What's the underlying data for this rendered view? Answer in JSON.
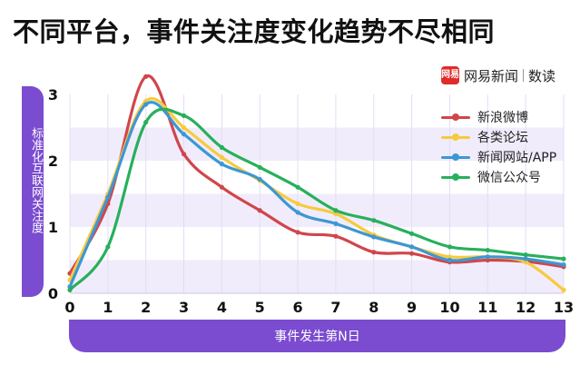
{
  "title": "不同平台，事件关注度变化趋势不尽相同",
  "brand": {
    "logo_text": "网易",
    "name": "网易新闻",
    "sub": "数读"
  },
  "chart_data": {
    "type": "line",
    "xlabel": "事件发生第N日",
    "ylabel": "标准化互联网关注度",
    "x": [
      0,
      1,
      2,
      3,
      4,
      5,
      6,
      7,
      8,
      9,
      10,
      11,
      12,
      13
    ],
    "xlim": [
      0,
      13
    ],
    "ylim": [
      0,
      3
    ],
    "y_ticks": [
      0,
      1,
      2,
      3
    ],
    "grid": "horizontal bands",
    "legend_position": "right",
    "series": [
      {
        "name": "新浪微博",
        "color": "#d0464b",
        "values": [
          0.3,
          1.35,
          3.27,
          2.1,
          1.6,
          1.25,
          0.92,
          0.86,
          0.62,
          0.6,
          0.47,
          0.5,
          0.48,
          0.4
        ]
      },
      {
        "name": "各类论坛",
        "color": "#f6cb3c",
        "values": [
          0.2,
          1.5,
          2.9,
          2.5,
          2.05,
          1.7,
          1.35,
          1.2,
          0.88,
          0.7,
          0.55,
          0.55,
          0.47,
          0.05
        ]
      },
      {
        "name": "新闻网站/APP",
        "color": "#3d97d4",
        "values": [
          0.1,
          1.45,
          2.85,
          2.4,
          1.95,
          1.72,
          1.22,
          1.05,
          0.85,
          0.7,
          0.5,
          0.55,
          0.52,
          0.43
        ]
      },
      {
        "name": "微信公众号",
        "color": "#27b05b",
        "values": [
          0.05,
          0.7,
          2.58,
          2.68,
          2.2,
          1.9,
          1.6,
          1.25,
          1.1,
          0.9,
          0.7,
          0.65,
          0.58,
          0.52
        ]
      }
    ]
  }
}
